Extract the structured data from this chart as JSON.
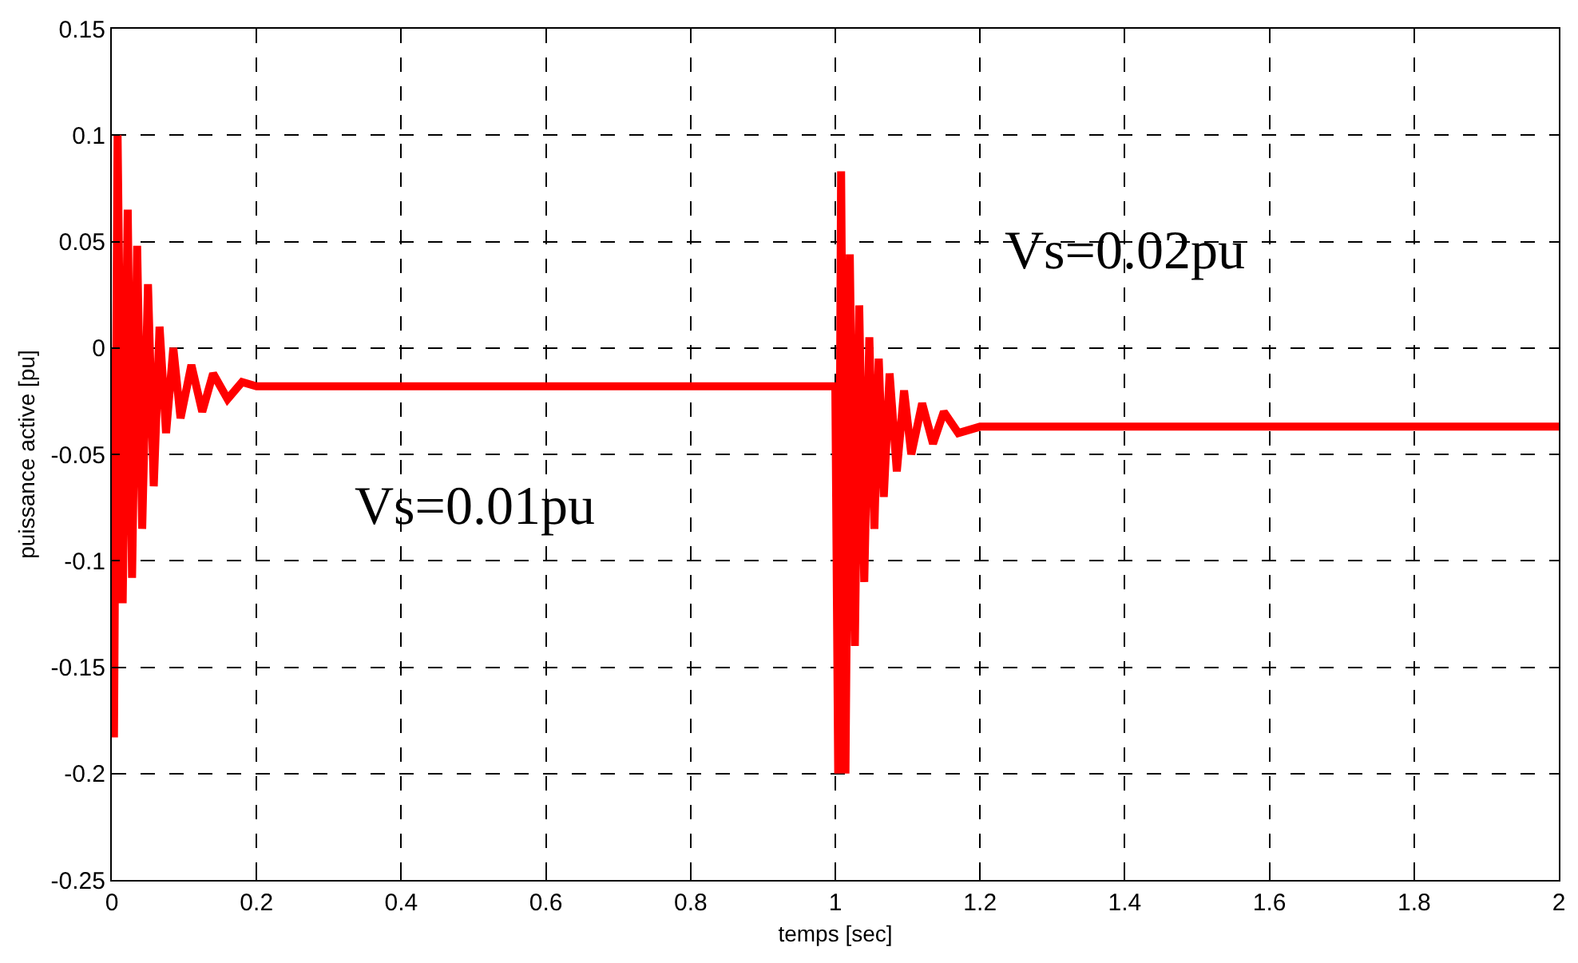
{
  "chart_data": {
    "type": "line",
    "xlabel": "temps [sec]",
    "ylabel": "puissance active [pu]",
    "x": [
      0,
      0.003,
      0.008,
      0.015,
      0.022,
      0.028,
      0.035,
      0.042,
      0.05,
      0.058,
      0.066,
      0.075,
      0.085,
      0.095,
      0.11,
      0.125,
      0.14,
      0.16,
      0.18,
      0.2,
      0.99,
      1.0,
      1.004,
      1.008,
      1.014,
      1.02,
      1.027,
      1.033,
      1.04,
      1.047,
      1.054,
      1.06,
      1.067,
      1.075,
      1.085,
      1.095,
      1.105,
      1.12,
      1.135,
      1.15,
      1.17,
      1.2,
      2
    ],
    "series": [
      {
        "color": "#ff0000",
        "values": [
          0,
          -0.183,
          0.1,
          -0.12,
          0.065,
          -0.108,
          0.048,
          -0.085,
          0.03,
          -0.065,
          0.01,
          -0.04,
          0,
          -0.033,
          -0.008,
          -0.03,
          -0.012,
          -0.024,
          -0.016,
          -0.018,
          -0.018,
          -0.018,
          -0.2,
          0.083,
          -0.2,
          0.044,
          -0.14,
          0.02,
          -0.11,
          0.005,
          -0.085,
          -0.005,
          -0.07,
          -0.012,
          -0.058,
          -0.02,
          -0.05,
          -0.026,
          -0.045,
          -0.03,
          -0.04,
          -0.037,
          -0.037
        ]
      }
    ],
    "xlim": [
      0,
      2
    ],
    "xticks": [
      0,
      0.2,
      0.4,
      0.6,
      0.8,
      1,
      1.2,
      1.4,
      1.6,
      1.8,
      2
    ],
    "ylim": [
      -0.25,
      0.15
    ],
    "yticks": [
      -0.25,
      -0.2,
      -0.15,
      -0.1,
      -0.05,
      0,
      0.05,
      0.1,
      0.15
    ],
    "grid": true,
    "legend": false,
    "marker": "none",
    "line_style": "solid",
    "annotations": [
      "Vs=0.01pu",
      "Vs=0.02pu"
    ]
  }
}
